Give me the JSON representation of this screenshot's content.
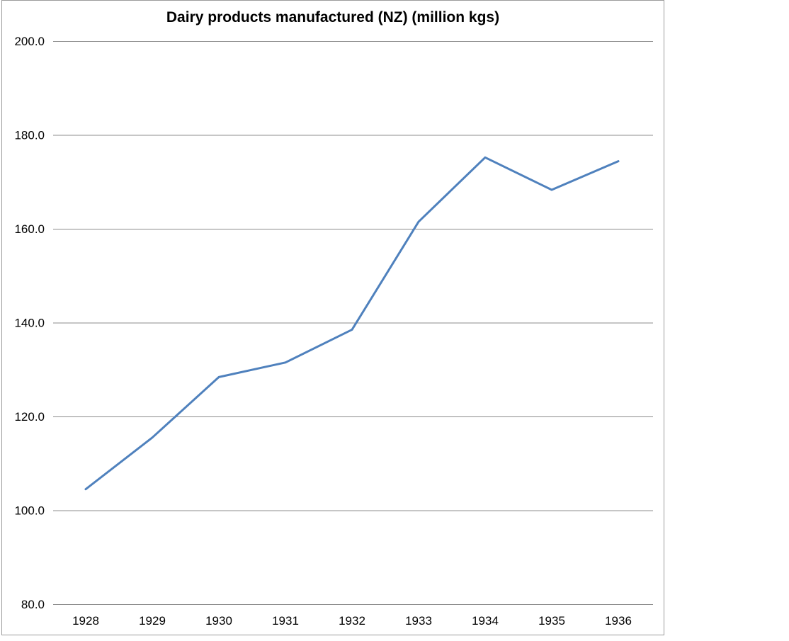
{
  "chart_data": {
    "type": "line",
    "title": "Dairy products manufactured (NZ) (million kgs)",
    "categories": [
      "1928",
      "1929",
      "1930",
      "1931",
      "1932",
      "1933",
      "1934",
      "1935",
      "1936"
    ],
    "values": [
      104.5,
      115.5,
      128.4,
      131.5,
      138.5,
      161.5,
      175.2,
      168.3,
      174.4
    ],
    "xlabel": "",
    "ylabel": "",
    "ylim": [
      80,
      200
    ],
    "ytick_step": 20,
    "ytick_labels": [
      "80.0",
      "100.0",
      "120.0",
      "140.0",
      "160.0",
      "180.0",
      "200.0"
    ],
    "grid": true,
    "legend": "none",
    "colors": {
      "line": "#4F81BD",
      "gridline": "#8C8C8C",
      "chart_border": "#9B9B9B",
      "text": "#000000",
      "background": "#FFFFFF"
    }
  }
}
